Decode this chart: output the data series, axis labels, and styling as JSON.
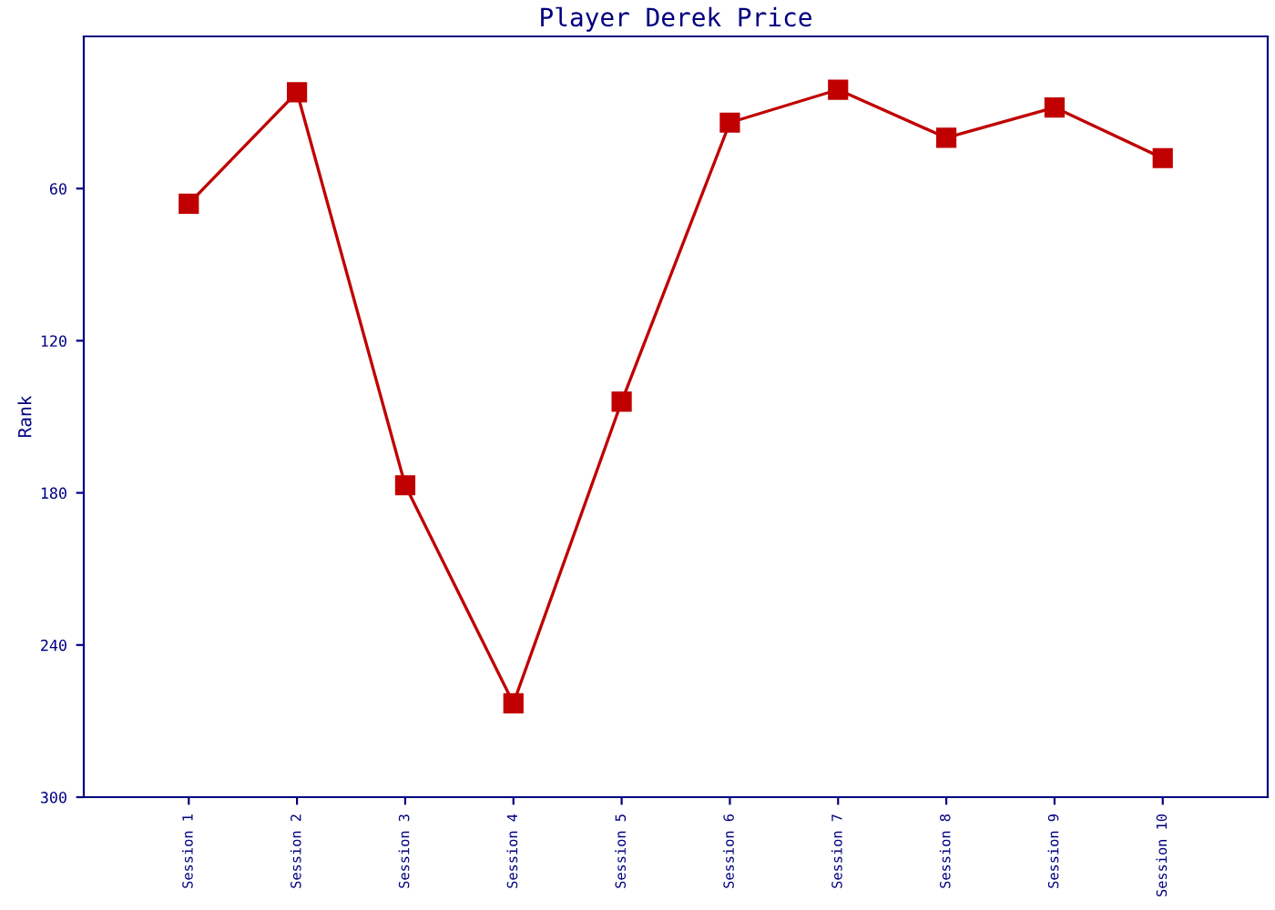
{
  "chart_data": {
    "type": "line",
    "title": "Player Derek Price",
    "ylabel": "Rank",
    "categories": [
      "Session 1",
      "Session 2",
      "Session 3",
      "Session 4",
      "Session 5",
      "Session 6",
      "Session 7",
      "Session 8",
      "Session 9",
      "Session 10"
    ],
    "series": [
      {
        "color": "#c00000",
        "values": [
          66,
          22,
          177,
          263,
          144,
          34,
          21,
          40,
          28,
          48
        ]
      }
    ],
    "ylim": [
      300,
      0
    ],
    "yticks": [
      60,
      120,
      180,
      240,
      300
    ],
    "grid": false,
    "marker": "square",
    "line_style": "solid"
  }
}
